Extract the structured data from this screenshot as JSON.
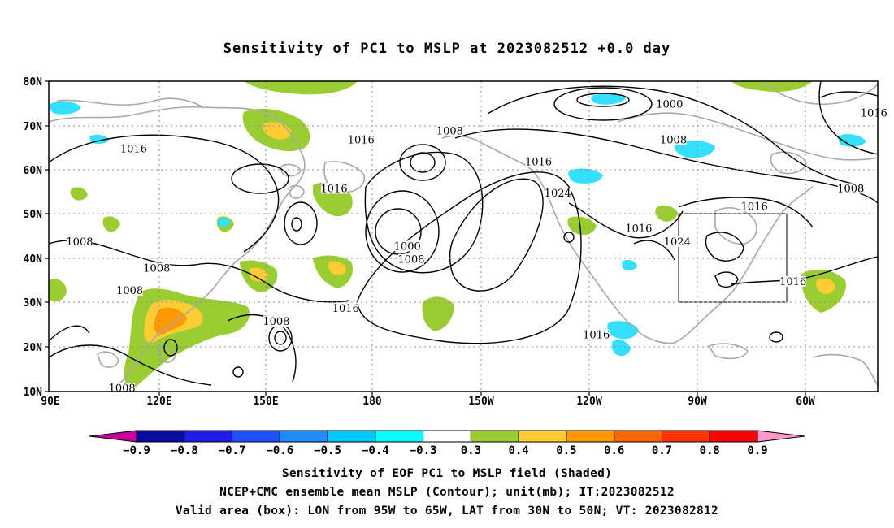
{
  "title": "Sensitivity of PC1 to MSLP at 2023082512 +0.0 day",
  "map": {
    "lat_labels": [
      "80N",
      "70N",
      "60N",
      "50N",
      "40N",
      "30N",
      "20N",
      "10N"
    ],
    "lon_labels": [
      "90E",
      "120E",
      "150E",
      "180",
      "150W",
      "120W",
      "90W",
      "60W"
    ],
    "valid_box": {
      "lon_range": [
        "95W",
        "65W"
      ],
      "lat_range": [
        "30N",
        "50N"
      ]
    },
    "contour_labels": [
      {
        "text": "1016",
        "lon": 112,
        "lat": 64
      },
      {
        "text": "1008",
        "lon": 98,
        "lat": 43
      },
      {
        "text": "1008",
        "lon": 118,
        "lat": 37
      },
      {
        "text": "1008",
        "lon": 111,
        "lat": 32
      },
      {
        "text": "1008",
        "lon": 109,
        "lat": 10
      },
      {
        "text": "1008",
        "lon": 149,
        "lat": 25
      },
      {
        "text": "1016",
        "lon": 164,
        "lat": 55
      },
      {
        "text": "1016",
        "lon": 171,
        "lat": 66
      },
      {
        "text": "1016",
        "lon": 167,
        "lat": 28
      },
      {
        "text": "1008",
        "lon": -166,
        "lat": 68
      },
      {
        "text": "1000",
        "lon": 183,
        "lat": 42
      },
      {
        "text": "1008",
        "lon": 184,
        "lat": 39
      },
      {
        "text": "1016",
        "lon": -143,
        "lat": 61
      },
      {
        "text": "1024",
        "lon": -138,
        "lat": 54
      },
      {
        "text": "1016",
        "lon": -128,
        "lat": 22
      },
      {
        "text": "1000",
        "lon": -109,
        "lat": 74
      },
      {
        "text": "1008",
        "lon": -108,
        "lat": 66
      },
      {
        "text": "1016",
        "lon": -117,
        "lat": 46
      },
      {
        "text": "1024",
        "lon": -107,
        "lat": 43
      },
      {
        "text": "1016",
        "lon": -87,
        "lat": 51
      },
      {
        "text": "1016",
        "lon": -77,
        "lat": 34
      },
      {
        "text": "1008",
        "lon": -62,
        "lat": 55
      },
      {
        "text": "1016",
        "lon": -56,
        "lat": 72
      }
    ]
  },
  "colorbar": {
    "labels": [
      "-0.9",
      "-0.8",
      "-0.7",
      "-0.6",
      "-0.5",
      "-0.4",
      "-0.3",
      "0.3",
      "0.4",
      "0.5",
      "0.6",
      "0.7",
      "0.8",
      "0.9"
    ],
    "colors": [
      "#0a0a9c",
      "#1e1ee6",
      "#1e50ff",
      "#1e8cff",
      "#00c8ff",
      "#00ffff",
      "#ffffff",
      "#9acd32",
      "#ffcc33",
      "#ff9900",
      "#ff6600",
      "#ff3300",
      "#ff0000"
    ],
    "left_tip_color": "#c8009c",
    "right_tip_color": "#ff99cc"
  },
  "captions": {
    "line1": "Sensitivity of EOF PC1 to MSLP field (Shaded)",
    "line2": "NCEP+CMC ensemble mean MSLP (Contour); unit(mb); IT:2023082512",
    "line3": "Valid area (box): LON from 95W to 65W, LAT from 30N to 50N; VT: 2023082812"
  },
  "shading_colors": {
    "green": "#9acd32",
    "yellow": "#ffcc33",
    "orange": "#ff9900",
    "cyan": "#33e0ff"
  }
}
